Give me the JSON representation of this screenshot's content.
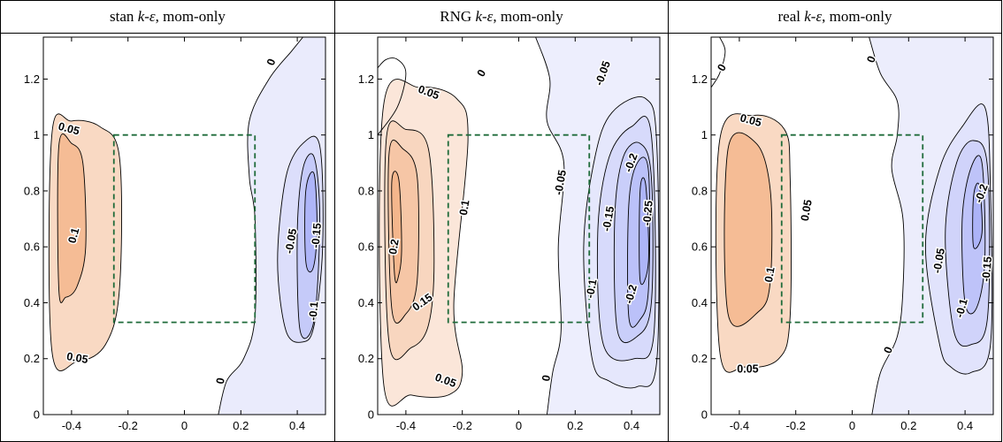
{
  "panels": [
    {
      "title_prefix": "stan ",
      "title_model": "k-ε",
      "title_suffix": ", mom-only"
    },
    {
      "title_prefix": "RNG ",
      "title_model": "k-ε",
      "title_suffix": ", mom-only"
    },
    {
      "title_prefix": "real ",
      "title_model": "k-ε",
      "title_suffix": ", mom-only"
    }
  ],
  "chart_data": [
    {
      "type": "contour",
      "title": "stan k-ε, mom-only",
      "xlim": [
        -0.5,
        0.5
      ],
      "ylim": [
        0,
        1.35
      ],
      "xticks": [
        "-0.4",
        "-0.2",
        "0",
        "0.2",
        "0.4"
      ],
      "yticks": [
        "0",
        "0.2",
        "0.4",
        "0.6",
        "0.8",
        "1",
        "1.2"
      ],
      "region_box": {
        "x": [
          -0.25,
          0.25
        ],
        "y": [
          0.33,
          1.0
        ]
      },
      "contour_labels": [
        "0.05",
        "0.1",
        "0.05",
        "0",
        "0",
        "-0.05",
        "-0.15",
        "-0.1"
      ],
      "max_level": 0.12,
      "min_level": -0.17
    },
    {
      "type": "contour",
      "title": "RNG k-ε, mom-only",
      "xlim": [
        -0.5,
        0.5
      ],
      "ylim": [
        0,
        1.35
      ],
      "xticks": [
        "-0.4",
        "-0.2",
        "0",
        "0.2",
        "0.4"
      ],
      "yticks": [
        "0",
        "0.2",
        "0.4",
        "0.6",
        "0.8",
        "1",
        "1.2"
      ],
      "region_box": {
        "x": [
          -0.25,
          0.25
        ],
        "y": [
          0.33,
          1.0
        ]
      },
      "contour_labels": [
        "0.05",
        "0",
        "0.1",
        "0.2",
        "0.15",
        "0.05",
        "0",
        "-0.05",
        "-0.05",
        "-0.2",
        "-0.15",
        "-0.25",
        "-0.1",
        "-0.2"
      ],
      "max_level": 0.22,
      "min_level": -0.28
    },
    {
      "type": "contour",
      "title": "real k-ε, mom-only",
      "xlim": [
        -0.5,
        0.5
      ],
      "ylim": [
        0,
        1.35
      ],
      "xticks": [
        "-0.4",
        "-0.2",
        "0",
        "0.2",
        "0.4"
      ],
      "yticks": [
        "0",
        "0.2",
        "0.4",
        "0.6",
        "0.8",
        "1",
        "1.2"
      ],
      "region_box": {
        "x": [
          -0.25,
          0.25
        ],
        "y": [
          0.33,
          1.0
        ]
      },
      "contour_labels": [
        "0",
        "0",
        "0.05",
        "0.05",
        "0.1",
        "0.05",
        "0",
        "-0.05",
        "-0.2",
        "-0.15",
        "-0.1"
      ],
      "max_level": 0.12,
      "min_level": -0.22
    }
  ]
}
